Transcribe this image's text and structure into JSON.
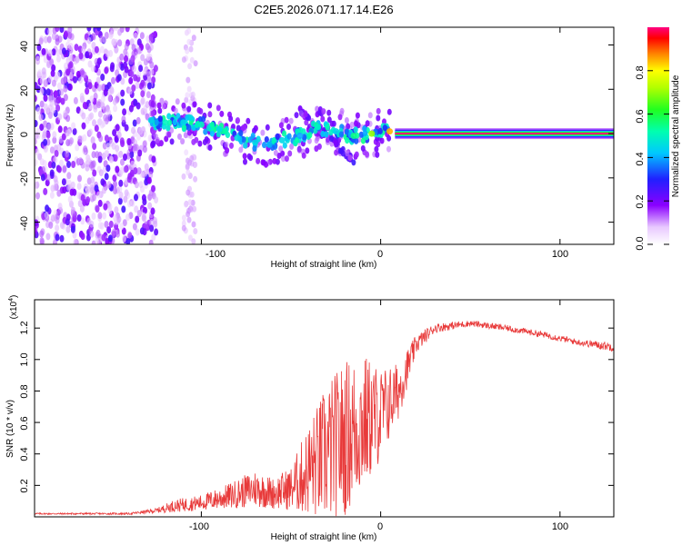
{
  "title": "C2E5.2026.071.17.14.E26",
  "chart_data": [
    {
      "type": "heatmap",
      "xlabel": "Height of straight line (km)",
      "ylabel": "Frequency (Hz)",
      "xlim": [
        -193,
        130
      ],
      "ylim": [
        -50,
        48
      ],
      "x_ticks": [
        -100,
        0,
        100
      ],
      "y_ticks": [
        -40,
        -20,
        0,
        20,
        40
      ],
      "x_tick_labels": [
        "-100",
        "0",
        "100"
      ],
      "y_tick_labels": [
        "-40",
        "-20",
        "0",
        "20",
        "40"
      ],
      "colorbar": {
        "label": "Normalized spectral amplitude",
        "range": [
          0,
          1
        ],
        "ticks": [
          0.0,
          0.2,
          0.4,
          0.6,
          0.8
        ],
        "tick_labels": [
          "0.0",
          "0.2",
          "0.4",
          "0.6",
          "0.8"
        ]
      },
      "features": {
        "noise_region_x": [
          -193,
          -125
        ],
        "vertical_streak_x": [
          -110,
          -103
        ],
        "ridge_points": [
          {
            "x": -128,
            "y": 6,
            "amp": 0.45
          },
          {
            "x": -120,
            "y": 5,
            "amp": 0.5
          },
          {
            "x": -110,
            "y": 5,
            "amp": 0.45
          },
          {
            "x": -100,
            "y": 4,
            "amp": 0.5
          },
          {
            "x": -90,
            "y": 2,
            "amp": 0.45
          },
          {
            "x": -80,
            "y": -2,
            "amp": 0.45
          },
          {
            "x": -70,
            "y": -4,
            "amp": 0.45
          },
          {
            "x": -62,
            "y": -5,
            "amp": 0.4
          },
          {
            "x": -55,
            "y": -3,
            "amp": 0.45
          },
          {
            "x": -45,
            "y": -1,
            "amp": 0.4
          },
          {
            "x": -35,
            "y": 3,
            "amp": 0.5
          },
          {
            "x": -25,
            "y": 1,
            "amp": 0.45
          },
          {
            "x": -15,
            "y": -1,
            "amp": 0.55
          },
          {
            "x": -5,
            "y": 0,
            "amp": 0.7
          },
          {
            "x": 5,
            "y": 1,
            "amp": 0.85
          }
        ],
        "constant_line": {
          "y": 0,
          "x_range": [
            8,
            130
          ],
          "amp": 1.0
        }
      }
    },
    {
      "type": "line",
      "xlabel": "Height of straight line (km)",
      "ylabel": "SNR (10 * v/v)",
      "y_scale_note": "(x10",
      "y_scale_exponent": "4",
      "xlim": [
        -193,
        130
      ],
      "ylim": [
        0,
        1.38
      ],
      "x_ticks": [
        -100,
        0,
        100
      ],
      "y_ticks": [
        0.2,
        0.4,
        0.6,
        0.8,
        1.0,
        1.2
      ],
      "x_tick_labels": [
        "-100",
        "0",
        "100"
      ],
      "y_tick_labels": [
        "0.2",
        "0.4",
        "0.6",
        "0.8",
        "1.0",
        "1.2"
      ],
      "line_color": "#e83a3a",
      "envelope": [
        {
          "x": -193,
          "mean": 0.02,
          "noise": 0.005
        },
        {
          "x": -140,
          "mean": 0.02,
          "noise": 0.006
        },
        {
          "x": -125,
          "mean": 0.04,
          "noise": 0.015
        },
        {
          "x": -115,
          "mean": 0.07,
          "noise": 0.04
        },
        {
          "x": -100,
          "mean": 0.09,
          "noise": 0.05
        },
        {
          "x": -85,
          "mean": 0.13,
          "noise": 0.08
        },
        {
          "x": -70,
          "mean": 0.18,
          "noise": 0.12
        },
        {
          "x": -60,
          "mean": 0.15,
          "noise": 0.1
        },
        {
          "x": -50,
          "mean": 0.18,
          "noise": 0.14
        },
        {
          "x": -40,
          "mean": 0.3,
          "noise": 0.3
        },
        {
          "x": -30,
          "mean": 0.4,
          "noise": 0.45
        },
        {
          "x": -20,
          "mean": 0.5,
          "noise": 0.5
        },
        {
          "x": -10,
          "mean": 0.6,
          "noise": 0.45
        },
        {
          "x": 0,
          "mean": 0.65,
          "noise": 0.3
        },
        {
          "x": 10,
          "mean": 0.8,
          "noise": 0.18
        },
        {
          "x": 20,
          "mean": 1.1,
          "noise": 0.06
        },
        {
          "x": 30,
          "mean": 1.2,
          "noise": 0.03
        },
        {
          "x": 50,
          "mean": 1.23,
          "noise": 0.02
        },
        {
          "x": 70,
          "mean": 1.2,
          "noise": 0.02
        },
        {
          "x": 90,
          "mean": 1.16,
          "noise": 0.02
        },
        {
          "x": 110,
          "mean": 1.11,
          "noise": 0.02
        },
        {
          "x": 130,
          "mean": 1.08,
          "noise": 0.03
        }
      ]
    }
  ]
}
